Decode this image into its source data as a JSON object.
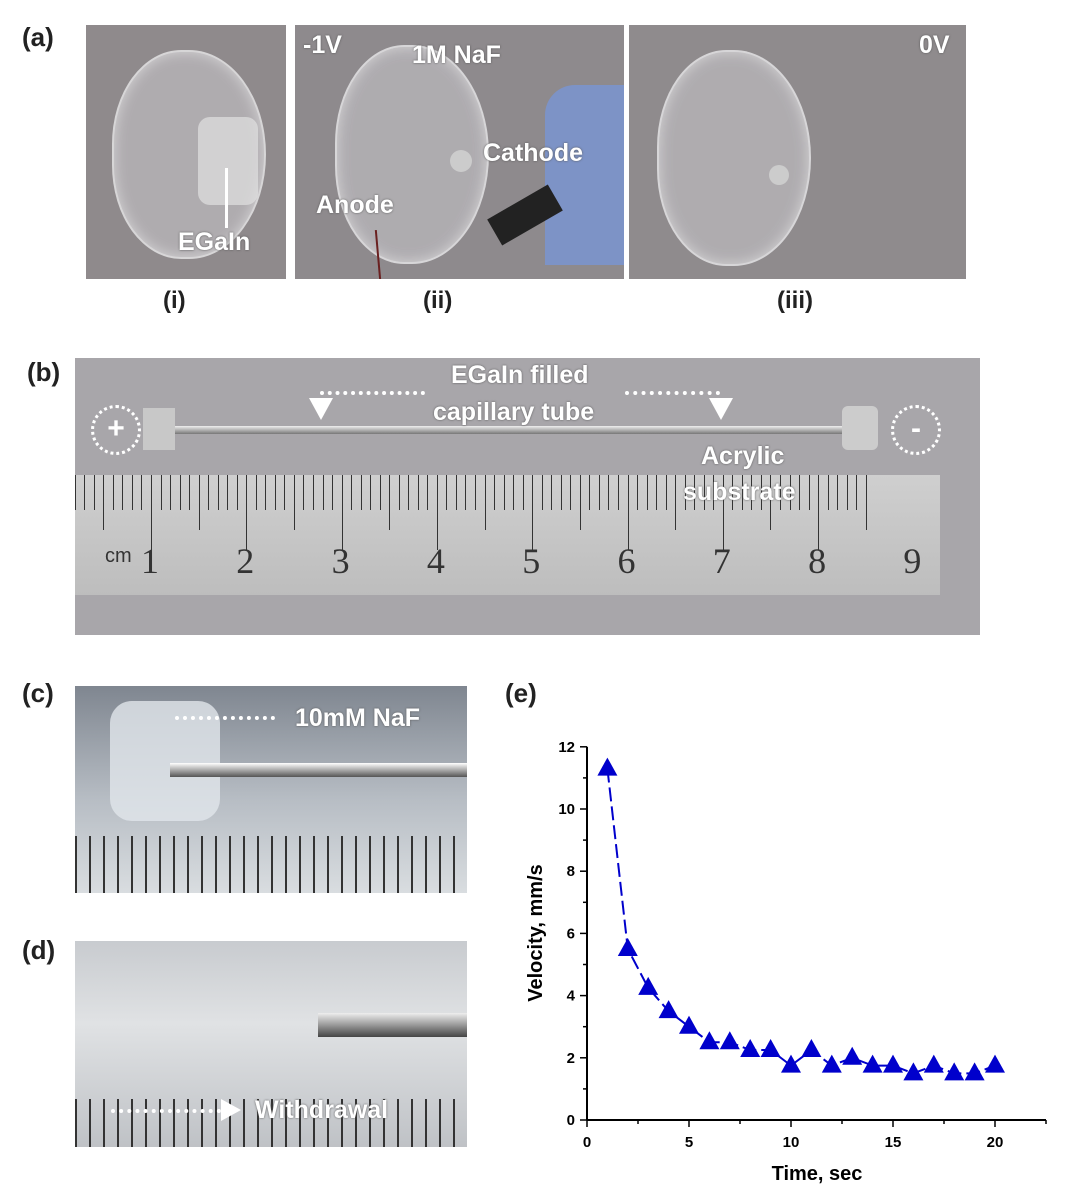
{
  "panel_a": {
    "label": "(a)",
    "sub_i": "(i)",
    "sub_ii": "(ii)",
    "sub_iii": "(iii)",
    "egain": "EGaIn",
    "voltage_ii": "-1V",
    "naf": "1M NaF",
    "cathode": "Cathode",
    "anode": "Anode",
    "voltage_iii": "0V"
  },
  "panel_b": {
    "label": "(b)",
    "tube": "EGaIn filled",
    "tube2": "capillary tube",
    "plus": "+",
    "minus": "-",
    "acrylic": "Acrylic",
    "substrate": "substrate",
    "ruler_unit": "cm",
    "ruler_numbers": [
      "1",
      "2",
      "3",
      "4",
      "5",
      "6",
      "7",
      "8",
      "9"
    ]
  },
  "panel_c": {
    "label": "(c)",
    "naf": "10mM NaF"
  },
  "panel_d": {
    "label": "(d)",
    "withdrawal": "Withdrawal"
  },
  "panel_e": {
    "label": "(e)"
  },
  "chart_data": {
    "type": "line",
    "xlabel": "Time, sec",
    "ylabel": "Velocity, mm/s",
    "xlim": [
      0,
      22.5
    ],
    "ylim": [
      0,
      12
    ],
    "xticks": [
      0,
      5,
      10,
      15,
      20
    ],
    "yticks": [
      0,
      2,
      4,
      6,
      8,
      10,
      12
    ],
    "marker": "triangle",
    "color": "#0000cc",
    "x": [
      1,
      2,
      3,
      4,
      5,
      6,
      7,
      8,
      9,
      10,
      11,
      12,
      13,
      14,
      15,
      16,
      17,
      18,
      19,
      20
    ],
    "y": [
      11.3,
      5.5,
      4.25,
      3.5,
      3.0,
      2.5,
      2.5,
      2.25,
      2.25,
      1.75,
      2.25,
      1.75,
      2.0,
      1.75,
      1.75,
      1.5,
      1.75,
      1.5,
      1.5,
      1.75
    ]
  }
}
